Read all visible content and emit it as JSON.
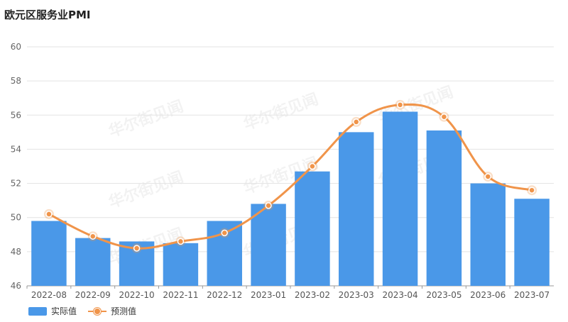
{
  "title": "欧元区服务业PMI",
  "watermark": "华尔街见闻",
  "chart_data": {
    "type": "bar",
    "categories": [
      "2022-08",
      "2022-09",
      "2022-10",
      "2022-11",
      "2022-12",
      "2023-01",
      "2023-02",
      "2023-03",
      "2023-04",
      "2023-05",
      "2023-06",
      "2023-07"
    ],
    "series": [
      {
        "name": "实际值",
        "type": "bar",
        "color": "#4a98e8",
        "values": [
          49.8,
          48.8,
          48.6,
          48.5,
          49.8,
          50.8,
          52.7,
          55.0,
          56.2,
          55.1,
          52.0,
          51.1
        ]
      },
      {
        "name": "预测值",
        "type": "line",
        "color": "#f0944a",
        "values": [
          50.2,
          48.9,
          48.2,
          48.6,
          49.1,
          50.7,
          53.0,
          55.6,
          56.6,
          55.9,
          52.4,
          51.6
        ]
      }
    ],
    "ylim": [
      46,
      60
    ],
    "yticks": [
      46,
      48,
      50,
      52,
      54,
      56,
      58,
      60
    ],
    "grid": true,
    "legend": "bottom-left"
  },
  "legend": {
    "bar_label": "实际值",
    "line_label": "预测值"
  }
}
